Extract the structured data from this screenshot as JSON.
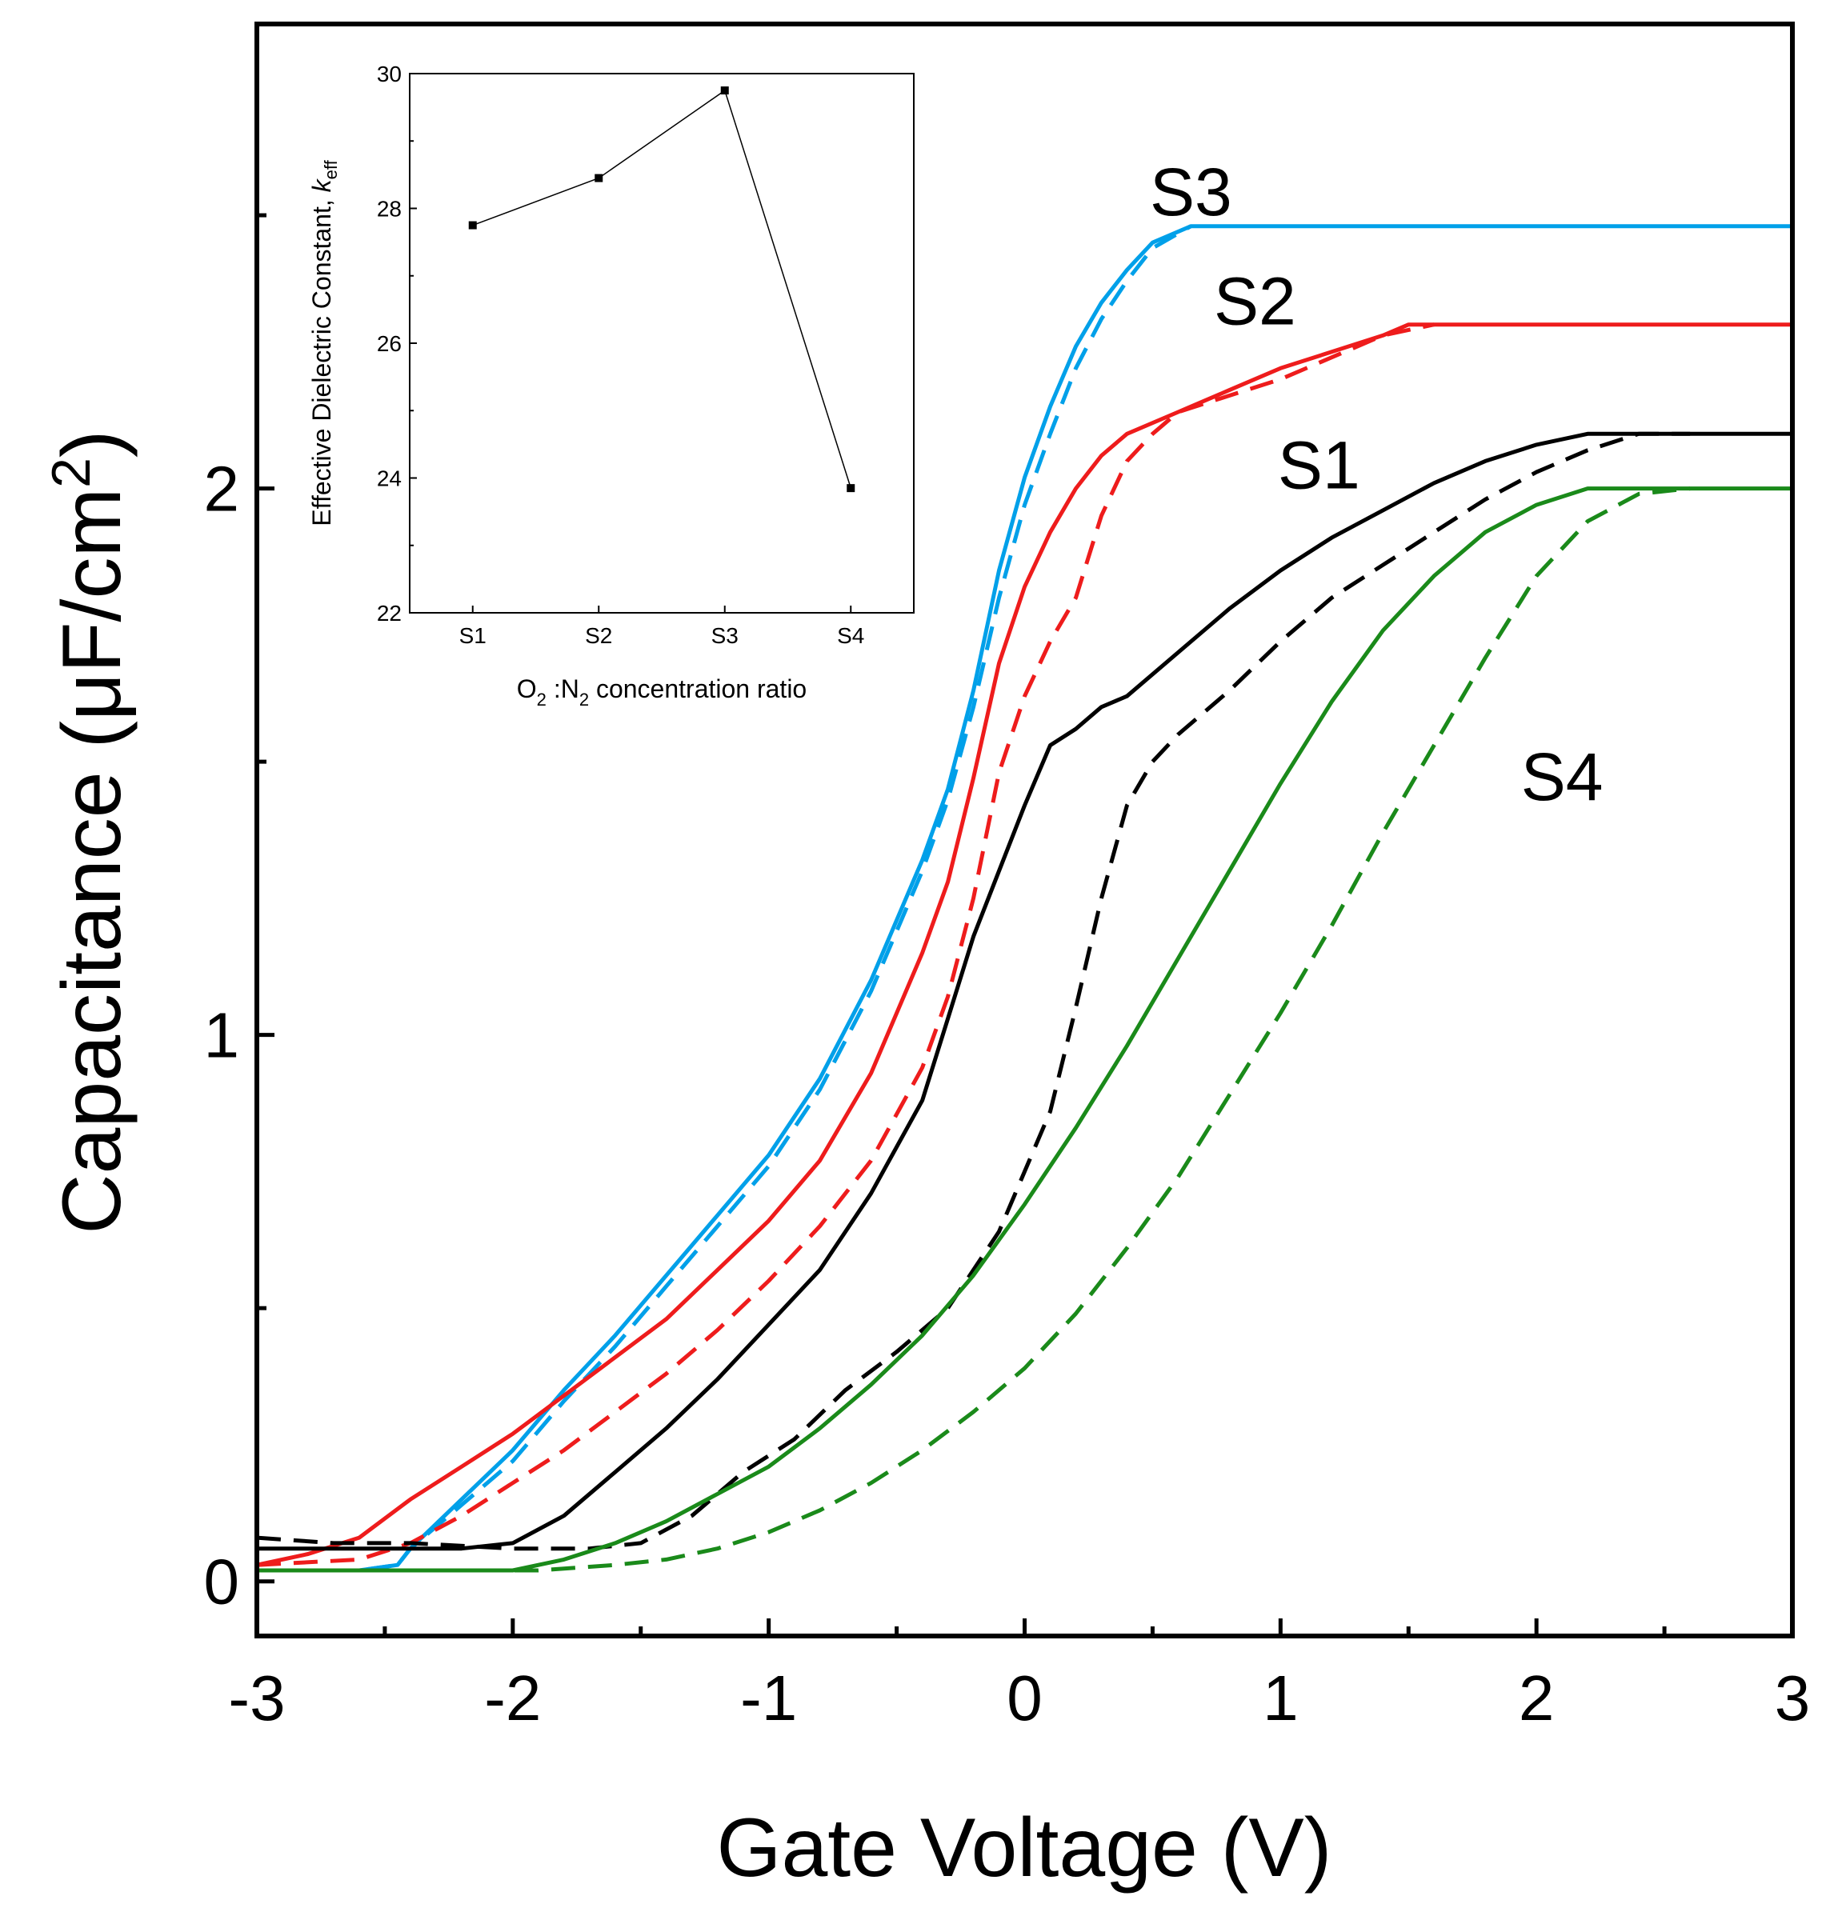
{
  "chart_data": [
    {
      "type": "line",
      "xlabel": "Gate Voltage (V)",
      "ylabel": "Capacitance (μF/cm²)",
      "ylabel_parts": {
        "main": "Capacitance (μF/cm",
        "sup": "2",
        "close": ")"
      },
      "xlim": [
        -3,
        3
      ],
      "ylim": [
        -0.1,
        2.85
      ],
      "x_ticks": [
        -3,
        -2,
        -1,
        0,
        1,
        2,
        3
      ],
      "x_tick_labels": [
        "-3",
        "-2",
        "-1",
        "0",
        "1",
        "2",
        "3"
      ],
      "y_ticks": [
        0,
        1,
        2
      ],
      "y_tick_labels": [
        "0",
        "1",
        "2"
      ],
      "curve_labels": [
        {
          "text": "S3",
          "x": 0.65,
          "y": 2.5
        },
        {
          "text": "S2",
          "x": 0.9,
          "y": 2.3
        },
        {
          "text": "S1",
          "x": 1.15,
          "y": 2.0
        },
        {
          "text": "S4",
          "x": 2.1,
          "y": 1.43
        }
      ],
      "series": [
        {
          "color": "#00a0e9",
          "dash": false,
          "points": [
            [
              -3,
              0.02
            ],
            [
              -2.6,
              0.02
            ],
            [
              -2.45,
              0.03
            ],
            [
              -2.4,
              0.06
            ],
            [
              -2.2,
              0.15
            ],
            [
              -2.0,
              0.24
            ],
            [
              -1.8,
              0.35
            ],
            [
              -1.6,
              0.45
            ],
            [
              -1.4,
              0.56
            ],
            [
              -1.2,
              0.67
            ],
            [
              -1.0,
              0.78
            ],
            [
              -0.8,
              0.92
            ],
            [
              -0.6,
              1.1
            ],
            [
              -0.4,
              1.32
            ],
            [
              -0.3,
              1.45
            ],
            [
              -0.2,
              1.63
            ],
            [
              -0.1,
              1.85
            ],
            [
              0,
              2.02
            ],
            [
              0.1,
              2.15
            ],
            [
              0.2,
              2.26
            ],
            [
              0.3,
              2.34
            ],
            [
              0.4,
              2.4
            ],
            [
              0.5,
              2.45
            ],
            [
              0.65,
              2.48
            ],
            [
              3,
              2.48
            ]
          ]
        },
        {
          "color": "#00a0e9",
          "dash": true,
          "points": [
            [
              -3,
              0.02
            ],
            [
              -2.6,
              0.02
            ],
            [
              -2.45,
              0.03
            ],
            [
              -2.4,
              0.06
            ],
            [
              -2.2,
              0.14
            ],
            [
              -2.0,
              0.22
            ],
            [
              -1.8,
              0.33
            ],
            [
              -1.6,
              0.43
            ],
            [
              -1.4,
              0.54
            ],
            [
              -1.2,
              0.65
            ],
            [
              -1.0,
              0.76
            ],
            [
              -0.8,
              0.9
            ],
            [
              -0.6,
              1.08
            ],
            [
              -0.4,
              1.3
            ],
            [
              -0.3,
              1.43
            ],
            [
              -0.2,
              1.6
            ],
            [
              -0.1,
              1.8
            ],
            [
              0,
              1.97
            ],
            [
              0.1,
              2.1
            ],
            [
              0.2,
              2.22
            ],
            [
              0.3,
              2.31
            ],
            [
              0.4,
              2.38
            ],
            [
              0.5,
              2.44
            ],
            [
              0.65,
              2.48
            ]
          ]
        },
        {
          "color": "#ee1c1c",
          "dash": false,
          "points": [
            [
              -3,
              0.03
            ],
            [
              -2.8,
              0.05
            ],
            [
              -2.6,
              0.08
            ],
            [
              -2.4,
              0.15
            ],
            [
              -2.2,
              0.21
            ],
            [
              -2.0,
              0.27
            ],
            [
              -1.8,
              0.34
            ],
            [
              -1.6,
              0.41
            ],
            [
              -1.4,
              0.48
            ],
            [
              -1.2,
              0.57
            ],
            [
              -1.0,
              0.66
            ],
            [
              -0.8,
              0.77
            ],
            [
              -0.6,
              0.93
            ],
            [
              -0.4,
              1.15
            ],
            [
              -0.3,
              1.28
            ],
            [
              -0.2,
              1.47
            ],
            [
              -0.1,
              1.68
            ],
            [
              0,
              1.82
            ],
            [
              0.1,
              1.92
            ],
            [
              0.2,
              2.0
            ],
            [
              0.3,
              2.06
            ],
            [
              0.4,
              2.1
            ],
            [
              0.6,
              2.14
            ],
            [
              0.8,
              2.18
            ],
            [
              1.0,
              2.22
            ],
            [
              1.2,
              2.25
            ],
            [
              1.4,
              2.28
            ],
            [
              1.5,
              2.3
            ],
            [
              3,
              2.3
            ]
          ]
        },
        {
          "color": "#ee1c1c",
          "dash": true,
          "points": [
            [
              -3,
              0.03
            ],
            [
              -2.6,
              0.04
            ],
            [
              -2.4,
              0.07
            ],
            [
              -2.2,
              0.12
            ],
            [
              -2.0,
              0.18
            ],
            [
              -1.8,
              0.24
            ],
            [
              -1.6,
              0.31
            ],
            [
              -1.4,
              0.38
            ],
            [
              -1.2,
              0.46
            ],
            [
              -1.0,
              0.55
            ],
            [
              -0.8,
              0.65
            ],
            [
              -0.6,
              0.77
            ],
            [
              -0.4,
              0.94
            ],
            [
              -0.3,
              1.07
            ],
            [
              -0.2,
              1.25
            ],
            [
              -0.1,
              1.48
            ],
            [
              0,
              1.62
            ],
            [
              0.1,
              1.72
            ],
            [
              0.2,
              1.8
            ],
            [
              0.3,
              1.95
            ],
            [
              0.4,
              2.05
            ],
            [
              0.5,
              2.1
            ],
            [
              0.6,
              2.14
            ],
            [
              0.8,
              2.17
            ],
            [
              1.0,
              2.2
            ],
            [
              1.2,
              2.24
            ],
            [
              1.4,
              2.28
            ],
            [
              1.6,
              2.3
            ]
          ]
        },
        {
          "color": "#000000",
          "dash": false,
          "points": [
            [
              -3,
              0.06
            ],
            [
              -2.4,
              0.06
            ],
            [
              -2.2,
              0.06
            ],
            [
              -2.0,
              0.07
            ],
            [
              -1.8,
              0.12
            ],
            [
              -1.6,
              0.2
            ],
            [
              -1.4,
              0.28
            ],
            [
              -1.2,
              0.37
            ],
            [
              -1.0,
              0.47
            ],
            [
              -0.8,
              0.57
            ],
            [
              -0.6,
              0.71
            ],
            [
              -0.4,
              0.88
            ],
            [
              -0.3,
              1.03
            ],
            [
              -0.2,
              1.18
            ],
            [
              -0.1,
              1.3
            ],
            [
              0,
              1.42
            ],
            [
              0.1,
              1.53
            ],
            [
              0.2,
              1.56
            ],
            [
              0.3,
              1.6
            ],
            [
              0.4,
              1.62
            ],
            [
              0.6,
              1.7
            ],
            [
              0.8,
              1.78
            ],
            [
              1.0,
              1.85
            ],
            [
              1.2,
              1.91
            ],
            [
              1.4,
              1.96
            ],
            [
              1.6,
              2.01
            ],
            [
              1.8,
              2.05
            ],
            [
              2.0,
              2.08
            ],
            [
              2.2,
              2.1
            ],
            [
              3,
              2.1
            ]
          ]
        },
        {
          "color": "#000000",
          "dash": true,
          "points": [
            [
              -3,
              0.08
            ],
            [
              -2.7,
              0.07
            ],
            [
              -2.4,
              0.07
            ],
            [
              -2.0,
              0.06
            ],
            [
              -1.7,
              0.06
            ],
            [
              -1.5,
              0.07
            ],
            [
              -1.3,
              0.12
            ],
            [
              -1.1,
              0.2
            ],
            [
              -0.9,
              0.26
            ],
            [
              -0.7,
              0.35
            ],
            [
              -0.5,
              0.42
            ],
            [
              -0.3,
              0.5
            ],
            [
              -0.1,
              0.64
            ],
            [
              0,
              0.75
            ],
            [
              0.1,
              0.86
            ],
            [
              0.2,
              1.05
            ],
            [
              0.3,
              1.25
            ],
            [
              0.4,
              1.42
            ],
            [
              0.5,
              1.5
            ],
            [
              0.6,
              1.55
            ],
            [
              0.8,
              1.63
            ],
            [
              1.0,
              1.72
            ],
            [
              1.2,
              1.8
            ],
            [
              1.4,
              1.86
            ],
            [
              1.6,
              1.92
            ],
            [
              1.8,
              1.98
            ],
            [
              2.0,
              2.03
            ],
            [
              2.2,
              2.07
            ],
            [
              2.4,
              2.1
            ],
            [
              2.6,
              2.1
            ]
          ]
        },
        {
          "color": "#1a8a1a",
          "dash": false,
          "points": [
            [
              -3,
              0.02
            ],
            [
              -2.0,
              0.02
            ],
            [
              -1.8,
              0.04
            ],
            [
              -1.6,
              0.07
            ],
            [
              -1.4,
              0.11
            ],
            [
              -1.2,
              0.16
            ],
            [
              -1.0,
              0.21
            ],
            [
              -0.8,
              0.28
            ],
            [
              -0.6,
              0.36
            ],
            [
              -0.4,
              0.45
            ],
            [
              -0.2,
              0.56
            ],
            [
              0,
              0.69
            ],
            [
              0.2,
              0.83
            ],
            [
              0.4,
              0.98
            ],
            [
              0.6,
              1.14
            ],
            [
              0.8,
              1.3
            ],
            [
              1.0,
              1.46
            ],
            [
              1.2,
              1.61
            ],
            [
              1.4,
              1.74
            ],
            [
              1.6,
              1.84
            ],
            [
              1.8,
              1.92
            ],
            [
              2.0,
              1.97
            ],
            [
              2.2,
              2.0
            ],
            [
              3,
              2.0
            ]
          ]
        },
        {
          "color": "#1a8a1a",
          "dash": true,
          "points": [
            [
              -3,
              0.02
            ],
            [
              -1.9,
              0.02
            ],
            [
              -1.6,
              0.03
            ],
            [
              -1.4,
              0.04
            ],
            [
              -1.2,
              0.06
            ],
            [
              -1.0,
              0.09
            ],
            [
              -0.8,
              0.13
            ],
            [
              -0.6,
              0.18
            ],
            [
              -0.4,
              0.24
            ],
            [
              -0.2,
              0.31
            ],
            [
              0,
              0.39
            ],
            [
              0.2,
              0.49
            ],
            [
              0.4,
              0.61
            ],
            [
              0.6,
              0.74
            ],
            [
              0.8,
              0.89
            ],
            [
              1.0,
              1.04
            ],
            [
              1.2,
              1.2
            ],
            [
              1.4,
              1.37
            ],
            [
              1.6,
              1.53
            ],
            [
              1.8,
              1.69
            ],
            [
              2.0,
              1.84
            ],
            [
              2.2,
              1.94
            ],
            [
              2.4,
              1.99
            ],
            [
              2.6,
              2.0
            ]
          ]
        }
      ]
    },
    {
      "type": "line",
      "xlabel": "O₂ :N₂ concentration ratio",
      "xlabel_parts": {
        "o": "O",
        "sub1": "2",
        "mid": " :N",
        "sub2": "2",
        "rest": " concentration ratio"
      },
      "ylabel": "Effective Dielectric Constant, k_eff",
      "ylabel_parts": {
        "main": "Effective Dielectric Constant, ",
        "k": "k",
        "sub": "eff"
      },
      "categories": [
        "S1",
        "S2",
        "S3",
        "S4"
      ],
      "values": [
        27.75,
        28.45,
        29.75,
        23.85
      ],
      "ylim": [
        22,
        30
      ],
      "y_ticks": [
        22,
        24,
        26,
        28,
        30
      ],
      "y_tick_labels": [
        "22",
        "24",
        "26",
        "28",
        "30"
      ],
      "colors": {
        "line": "#000000",
        "marker": "#000000"
      }
    }
  ]
}
